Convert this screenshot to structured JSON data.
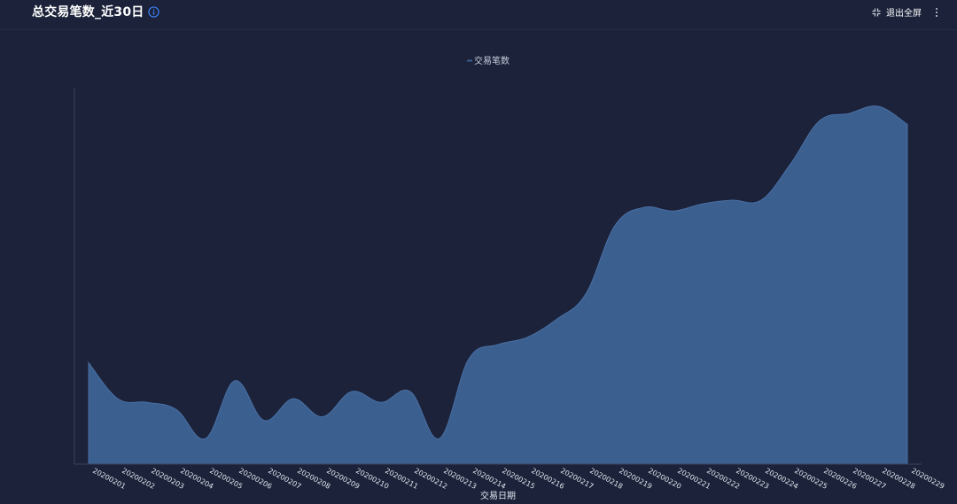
{
  "header": {
    "title": "总交易笔数_近30日",
    "exit_fullscreen_label": "退出全屏"
  },
  "icons": {
    "info": "info-icon",
    "exit_fullscreen": "exit-fullscreen-icon",
    "more": "more-vertical-icon"
  },
  "colors": {
    "background": "#1b2239",
    "area_fill": "#3b5f8f",
    "accent": "#3d7ff5"
  },
  "chart_data": {
    "type": "area",
    "title": "",
    "xlabel": "交易日期",
    "ylabel": "",
    "legend_position": "top-center",
    "grid": false,
    "y_axis_labels_visible": false,
    "ylim": [
      0,
      100
    ],
    "categories": [
      "20200201",
      "20200202",
      "20200203",
      "20200204",
      "20200205",
      "20200206",
      "20200207",
      "20200208",
      "20200209",
      "20200210",
      "20200211",
      "20200212",
      "20200213",
      "20200214",
      "20200215",
      "20200216",
      "20200217",
      "20200218",
      "20200219",
      "20200220",
      "20200221",
      "20200222",
      "20200223",
      "20200224",
      "20200225",
      "20200226",
      "20200227",
      "20200228",
      "20200229"
    ],
    "series": [
      {
        "name": "交易笔数",
        "values": [
          29,
          19,
          18,
          16,
          8,
          24,
          13,
          19,
          14,
          21,
          18,
          21,
          8,
          30,
          34,
          36,
          41,
          48,
          67,
          72,
          71,
          73,
          74,
          74,
          84,
          96,
          98,
          100,
          95
        ]
      }
    ]
  }
}
